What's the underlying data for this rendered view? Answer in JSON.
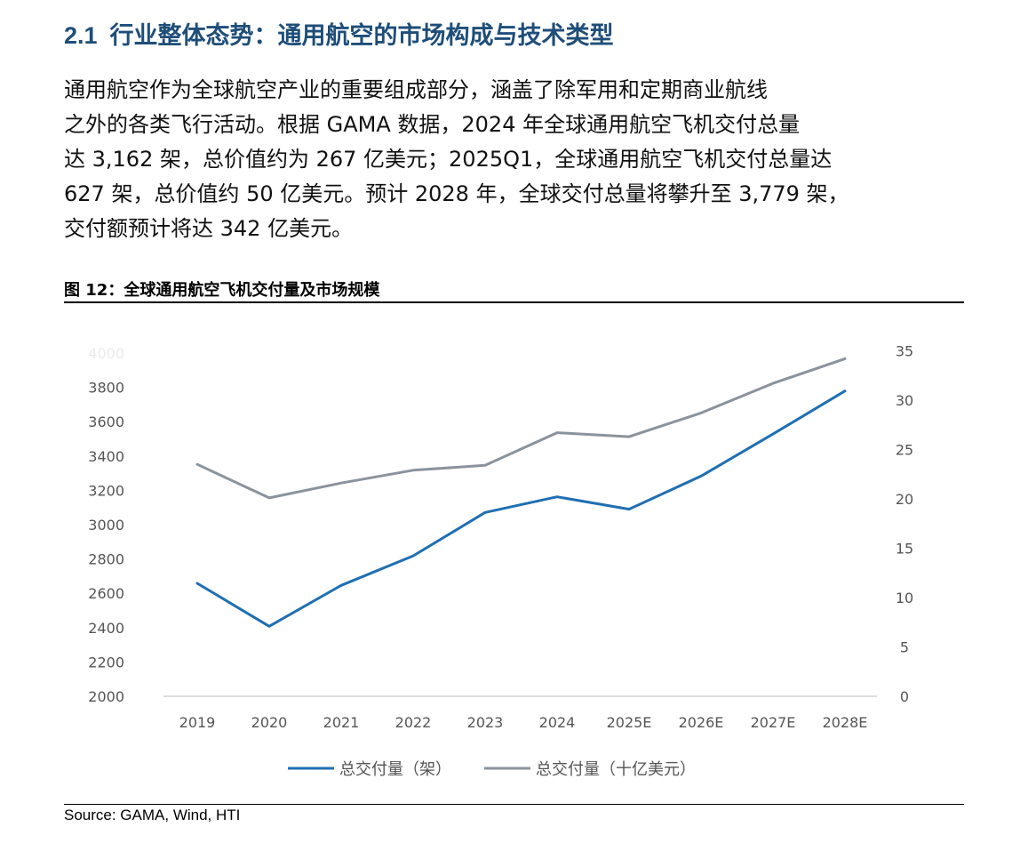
{
  "section": {
    "number": "2.1",
    "title": "行业整体态势：通用航空的市场构成与技术类型"
  },
  "paragraph": {
    "lines": [
      "通用航空作为全球航空产业的重要组成部分，涵盖了除军用和定期商业航线",
      "之外的各类飞行活动。根据 GAMA 数据，2024 年全球通用航空飞机交付总量",
      "达 3,162 架，总价值约为 267 亿美元；2025Q1，全球通用航空飞机交付总量达",
      "627 架，总价值约 50 亿美元。预计 2028 年，全球交付总量将攀升至 3,779 架，",
      "交付额预计将达 342 亿美元。"
    ]
  },
  "figure": {
    "title": "图 12：全球通用航空飞机交付量及市场规模",
    "source": "Source: GAMA, Wind, HTI"
  },
  "chart_data": {
    "type": "line",
    "categories": [
      "2019",
      "2020",
      "2021",
      "2022",
      "2023",
      "2024",
      "2025E",
      "2026E",
      "2027E",
      "2028E"
    ],
    "series": [
      {
        "name": "总交付量（架）",
        "axis": "left",
        "color": "#1f6fb2",
        "values": [
          2658,
          2408,
          2646,
          2818,
          3071,
          3162,
          3090,
          3283,
          3528,
          3779
        ]
      },
      {
        "name": "总交付量（十亿美元）",
        "axis": "right",
        "color": "#8a939d",
        "values": [
          23.5,
          20.1,
          21.6,
          22.9,
          23.4,
          26.7,
          26.3,
          28.7,
          31.7,
          34.2
        ]
      }
    ],
    "y_left": {
      "ylim": [
        2000,
        4000
      ],
      "ticks": [
        "2000",
        "2200",
        "2400",
        "2600",
        "2800",
        "3000",
        "3200",
        "3400",
        "3600",
        "3800",
        "4000"
      ]
    },
    "y_right": {
      "ylim": [
        0,
        35
      ],
      "ticks": [
        "0",
        "5",
        "10",
        "15",
        "20",
        "25",
        "30",
        "35"
      ]
    },
    "grid": false,
    "legend": "bottom-center"
  }
}
